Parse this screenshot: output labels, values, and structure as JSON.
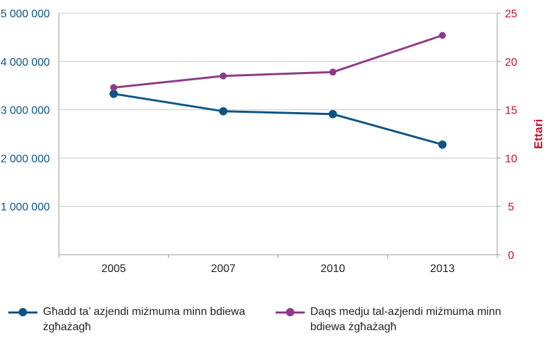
{
  "chart_data": {
    "type": "line",
    "categories": [
      "2005",
      "2007",
      "2010",
      "2013"
    ],
    "series": [
      {
        "name": "Għadd ta’ azjendi miżmuma minn bdiewa żgħażagħ",
        "axis": "left",
        "color": "#0b5584",
        "values": [
          3330000,
          2970000,
          2910000,
          2280000
        ]
      },
      {
        "name": "Daqs medju tal-azjendi miżmuma minn bdiewa żgħażagħ",
        "axis": "right",
        "color": "#8f3a86",
        "values": [
          17.3,
          18.5,
          18.9,
          22.7
        ]
      }
    ],
    "y_left": {
      "ylim": [
        0,
        5000000
      ],
      "ticks": [
        1000000,
        2000000,
        3000000,
        4000000,
        5000000
      ],
      "tick_labels": [
        "1 000 000",
        "2 000 000",
        "3 000 000",
        "4 000 000",
        "5 000 000"
      ],
      "color": "#0b5584"
    },
    "y_right": {
      "label": "Ettari",
      "ylim": [
        0,
        25
      ],
      "ticks": [
        0,
        5,
        10,
        15,
        20,
        25
      ],
      "tick_labels": [
        "0",
        "5",
        "10",
        "15",
        "20",
        "25"
      ],
      "color": "#c8102e"
    },
    "grid": true,
    "legend_position": "bottom"
  }
}
